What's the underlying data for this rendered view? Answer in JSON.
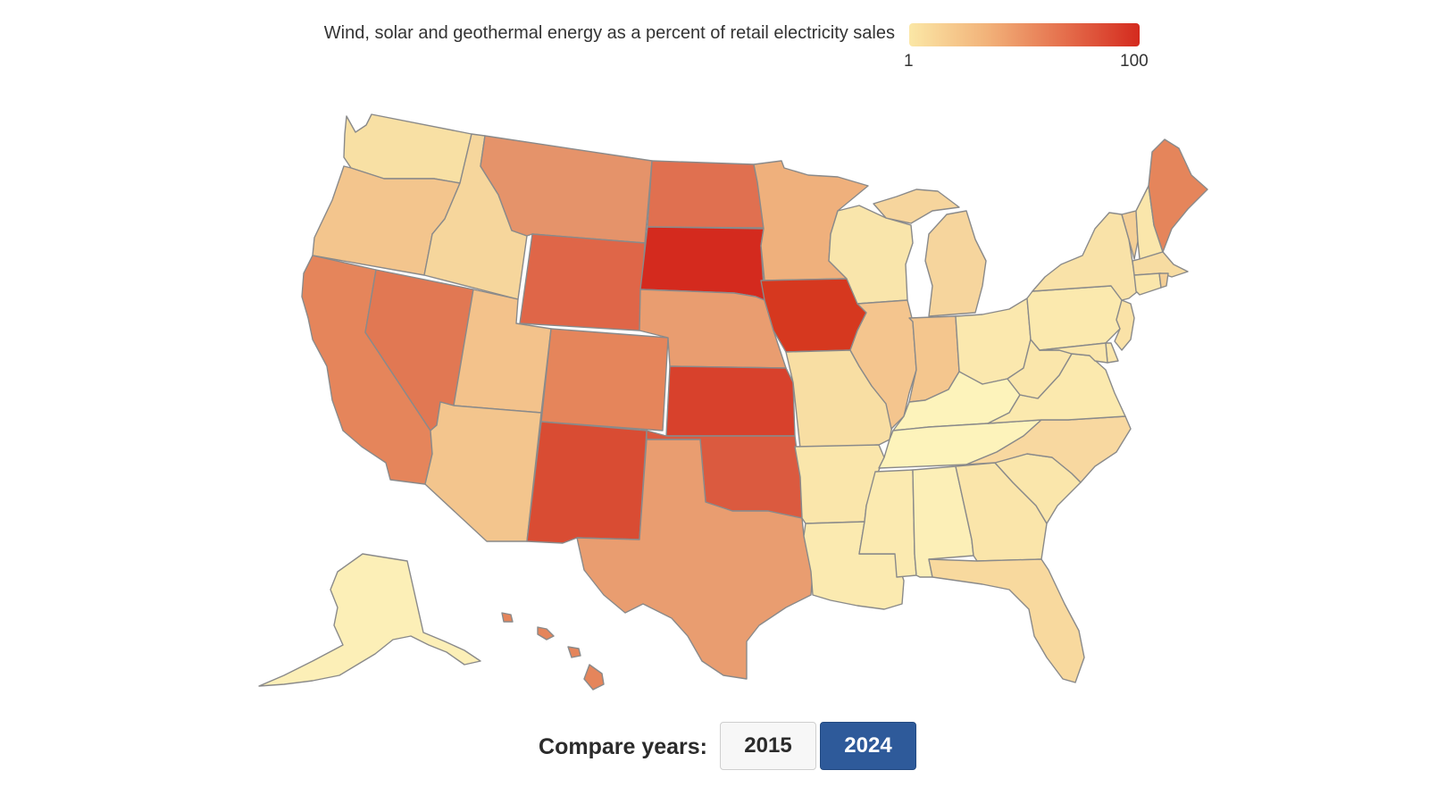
{
  "legend": {
    "title": "Wind, solar and geothermal energy as a percent of retail electricity sales",
    "min_label": "1",
    "max_label": "100",
    "gradient": [
      "#fbe7a6",
      "#f2b37a",
      "#e5704d",
      "#d42a1e"
    ]
  },
  "controls": {
    "label": "Compare years:",
    "years": [
      {
        "label": "2015",
        "active": false
      },
      {
        "label": "2024",
        "active": true
      }
    ]
  },
  "states": [
    {
      "id": "WA",
      "color": "#f8e0a4"
    },
    {
      "id": "OR",
      "color": "#f3c58d"
    },
    {
      "id": "CA",
      "color": "#e5855b"
    },
    {
      "id": "ID",
      "color": "#f6d69c"
    },
    {
      "id": "NV",
      "color": "#e17853"
    },
    {
      "id": "MT",
      "color": "#e5936a"
    },
    {
      "id": "WY",
      "color": "#df6648"
    },
    {
      "id": "UT",
      "color": "#f3c28b"
    },
    {
      "id": "AZ",
      "color": "#f3c58d"
    },
    {
      "id": "CO",
      "color": "#e5855b"
    },
    {
      "id": "NM",
      "color": "#d94c33"
    },
    {
      "id": "ND",
      "color": "#e07050"
    },
    {
      "id": "SD",
      "color": "#d42a1e"
    },
    {
      "id": "NE",
      "color": "#e99d70"
    },
    {
      "id": "KS",
      "color": "#d8412c"
    },
    {
      "id": "OK",
      "color": "#db5a3f"
    },
    {
      "id": "TX",
      "color": "#e99d70"
    },
    {
      "id": "MN",
      "color": "#efb07c"
    },
    {
      "id": "IA",
      "color": "#d6381f"
    },
    {
      "id": "MO",
      "color": "#f8dea3"
    },
    {
      "id": "AR",
      "color": "#fae6ab"
    },
    {
      "id": "LA",
      "color": "#fbeab0"
    },
    {
      "id": "WI",
      "color": "#f9e5ab"
    },
    {
      "id": "IL",
      "color": "#f4c58e"
    },
    {
      "id": "MI",
      "color": "#f6d59d"
    },
    {
      "id": "IN",
      "color": "#f4c68e"
    },
    {
      "id": "OH",
      "color": "#fbe8ae"
    },
    {
      "id": "KY",
      "color": "#fdf3bb"
    },
    {
      "id": "TN",
      "color": "#fdf3bb"
    },
    {
      "id": "MS",
      "color": "#fbeab0"
    },
    {
      "id": "AL",
      "color": "#fcefb7"
    },
    {
      "id": "GA",
      "color": "#fae5aa"
    },
    {
      "id": "FL",
      "color": "#f8d99e"
    },
    {
      "id": "SC",
      "color": "#fae6ab"
    },
    {
      "id": "NC",
      "color": "#f8d8a0"
    },
    {
      "id": "VA",
      "color": "#fbe9ae"
    },
    {
      "id": "WV",
      "color": "#fae6ab"
    },
    {
      "id": "PA",
      "color": "#fbe9ae"
    },
    {
      "id": "NY",
      "color": "#f9e2a8"
    },
    {
      "id": "VT",
      "color": "#f4cf96"
    },
    {
      "id": "NH",
      "color": "#fae6ab"
    },
    {
      "id": "ME",
      "color": "#e5855b"
    },
    {
      "id": "MA",
      "color": "#f7dca2"
    },
    {
      "id": "CT",
      "color": "#fae6ab"
    },
    {
      "id": "RI",
      "color": "#f4cf96"
    },
    {
      "id": "NJ",
      "color": "#fae2a7"
    },
    {
      "id": "DE",
      "color": "#fae6ab"
    },
    {
      "id": "MD",
      "color": "#fae6ab"
    },
    {
      "id": "AK",
      "color": "#fcefb7"
    },
    {
      "id": "HI",
      "color": "#e5855b"
    }
  ]
}
